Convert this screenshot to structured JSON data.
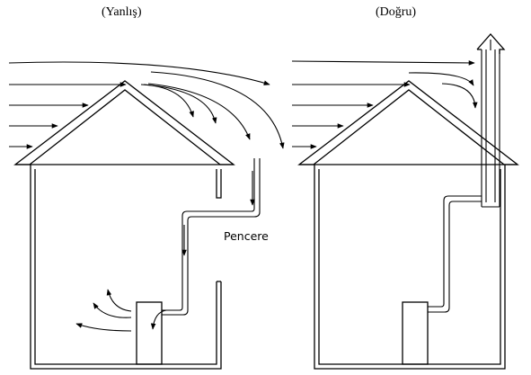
{
  "panels": {
    "wrong": {
      "caption": "(Yanlış)"
    },
    "right": {
      "caption": "(Doğru)"
    }
  },
  "labels": {
    "window": "Pencere"
  },
  "colors": {
    "line": "#000000",
    "background": "#ffffff"
  }
}
